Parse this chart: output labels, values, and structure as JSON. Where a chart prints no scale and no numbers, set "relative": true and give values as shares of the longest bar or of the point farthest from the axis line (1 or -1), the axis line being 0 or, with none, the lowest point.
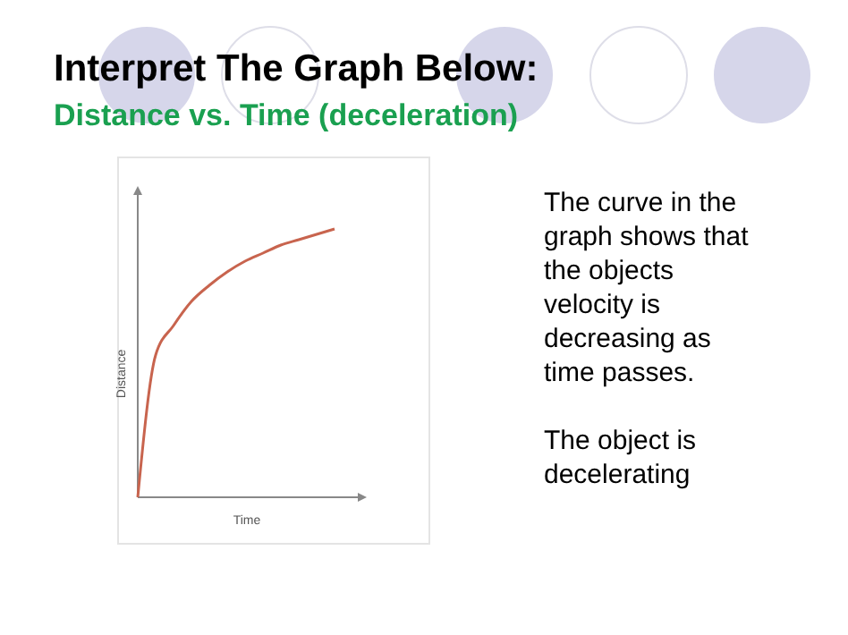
{
  "chart_data": {
    "type": "line",
    "title": "Interpret The Graph Below:",
    "subtitle": "Distance vs. Time (deceleration)",
    "xlabel": "Time",
    "ylabel": "Distance",
    "relative": true,
    "categories": [
      null,
      null,
      null,
      null,
      null,
      null,
      null,
      null,
      null,
      null,
      null,
      null
    ],
    "series": [
      {
        "color": "#c8644e",
        "values": [
          0,
          0.53,
          0.64,
          0.73,
          0.79,
          0.84,
          0.88,
          0.91,
          0.94,
          0.96,
          0.98,
          1
        ]
      }
    ],
    "annotations": [
      "The curve in the graph shows that the objects velocity is decreasing as time passes.",
      "The object is decelerating"
    ],
    "marker": "none",
    "line_style": "solid"
  }
}
